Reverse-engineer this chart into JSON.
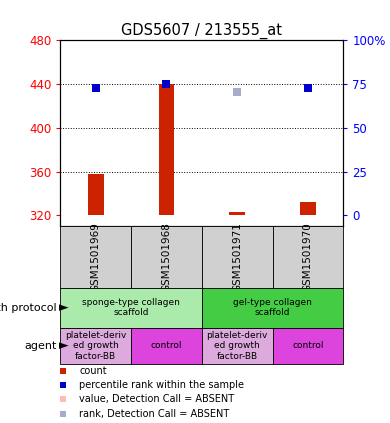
{
  "title": "GDS5607 / 213555_at",
  "samples": [
    "GSM1501969",
    "GSM1501968",
    "GSM1501971",
    "GSM1501970"
  ],
  "ylim_left": [
    310,
    480
  ],
  "yticks_left": [
    320,
    360,
    400,
    440,
    480
  ],
  "yticks_right_pct": [
    0,
    25,
    50,
    75,
    100
  ],
  "ytick_labels_right": [
    "0",
    "25",
    "50",
    "75",
    "100%"
  ],
  "bar_bottoms": [
    320,
    320,
    320,
    320
  ],
  "bar_tops": [
    358,
    440,
    323,
    332
  ],
  "blue_square_y": [
    436,
    440,
    null,
    436
  ],
  "blue_square_absent_y": [
    null,
    null,
    433,
    null
  ],
  "growth_protocol_groups": [
    {
      "label": "sponge-type collagen\nscaffold",
      "cols": [
        0,
        1
      ],
      "color": "#aaeaaa"
    },
    {
      "label": "gel-type collagen\nscaffold",
      "cols": [
        2,
        3
      ],
      "color": "#44cc44"
    }
  ],
  "agent_groups": [
    {
      "label": "platelet-deriv\ned growth\nfactor-BB",
      "cols": [
        0
      ],
      "color": "#ddaadd"
    },
    {
      "label": "control",
      "cols": [
        1
      ],
      "color": "#dd44dd"
    },
    {
      "label": "platelet-deriv\ned growth\nfactor-BB",
      "cols": [
        2
      ],
      "color": "#ddaadd"
    },
    {
      "label": "control",
      "cols": [
        3
      ],
      "color": "#dd44dd"
    }
  ],
  "bar_color": "#cc2200",
  "blue_square_color": "#0000cc",
  "blue_absent_color": "#aaaacc",
  "pink_absent_color": "#ffbbbb",
  "n_samples": 4,
  "legend_items": [
    {
      "color": "#cc2200",
      "label": "count"
    },
    {
      "color": "#0000cc",
      "label": "percentile rank within the sample"
    },
    {
      "color": "#ffbbbb",
      "label": "value, Detection Call = ABSENT"
    },
    {
      "color": "#aaaacc",
      "label": "rank, Detection Call = ABSENT"
    }
  ],
  "sample_box_color": "#d0d0d0",
  "bar_width": 0.22,
  "marker_size": 5.5
}
